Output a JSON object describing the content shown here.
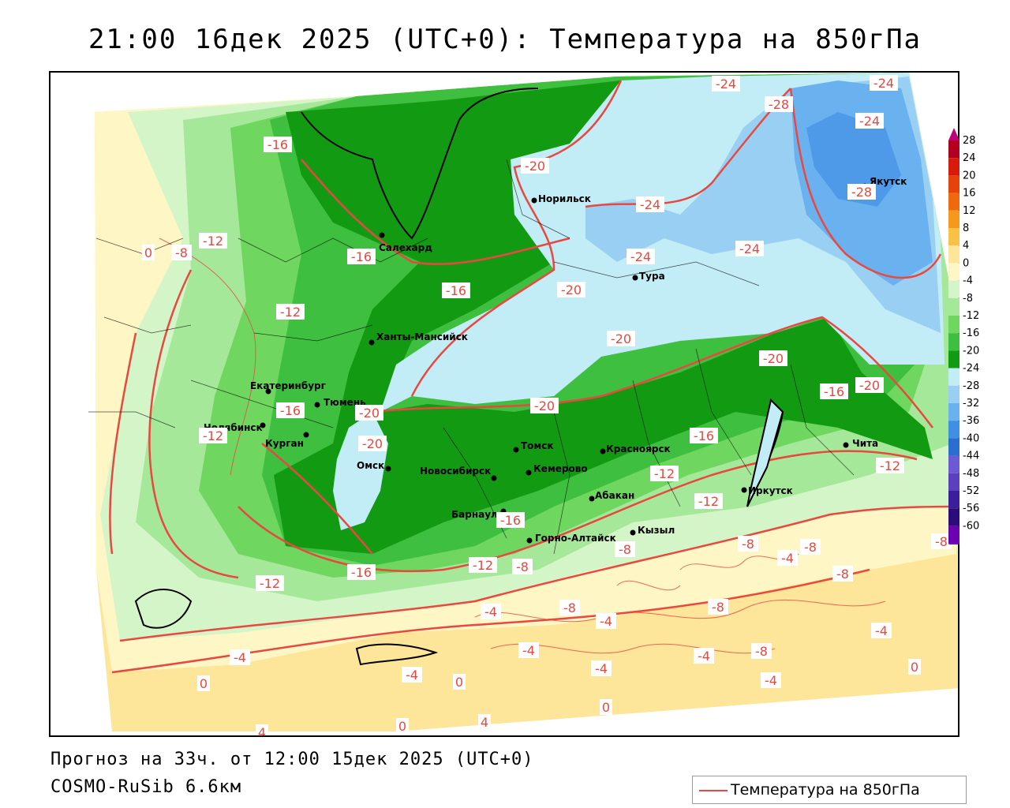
{
  "title": "21:00 16дек 2025 (UTC+0): Температура на 850гПа",
  "footer": {
    "forecast": "Прогноз на 33ч. от 12:00 15дек 2025 (UTC+0)",
    "model": "COSMO-RuSib 6.6км"
  },
  "legend": {
    "label": "Температура на 850гПа",
    "line_color": "#e8483f"
  },
  "scale": {
    "ticks": [
      "28",
      "24",
      "20",
      "16",
      "12",
      "8",
      "4",
      "0",
      "-4",
      "-8",
      "-12",
      "-16",
      "-20",
      "-24",
      "-28",
      "-32",
      "-36",
      "-40",
      "-44",
      "-48",
      "-52",
      "-56",
      "-60"
    ],
    "colors": [
      "#c0007a",
      "#b3001e",
      "#d61a0c",
      "#e8420c",
      "#ef6a0e",
      "#f5981c",
      "#f9c246",
      "#fde59a",
      "#fef6c5",
      "#d4f5c8",
      "#a6e89a",
      "#6fd65f",
      "#3fbf3f",
      "#139a13",
      "#c2ecf6",
      "#98cff3",
      "#6ab1ef",
      "#3f8fe4",
      "#2a6fd0",
      "#6d58d6",
      "#5a3fbf",
      "#3a1e9c",
      "#2b0c7a",
      "#6a00b2"
    ]
  },
  "cities": [
    {
      "name": "Салехард"
    },
    {
      "name": "Норильск"
    },
    {
      "name": "Тура"
    },
    {
      "name": "Якутск"
    },
    {
      "name": "Ханты-Мансийск"
    },
    {
      "name": "Екатеринбург"
    },
    {
      "name": "Тюмень"
    },
    {
      "name": "Челябинск"
    },
    {
      "name": "Курган"
    },
    {
      "name": "Омск"
    },
    {
      "name": "Новосибирск"
    },
    {
      "name": "Томск"
    },
    {
      "name": "Кемерово"
    },
    {
      "name": "Красноярск"
    },
    {
      "name": "Барнаул"
    },
    {
      "name": "Абакан"
    },
    {
      "name": "Горно-Алтайск"
    },
    {
      "name": "Кызыл"
    },
    {
      "name": "Иркутск"
    },
    {
      "name": "Чита"
    }
  ],
  "isotherm_labels": [
    "-24",
    "-28",
    "-24",
    "-24",
    "-28",
    "-20",
    "-24",
    "-24",
    "-24",
    "-16",
    "-12",
    "0",
    "-8",
    "-16",
    "-16",
    "-20",
    "-12",
    "-20",
    "-20",
    "-20",
    "-16",
    "-20",
    "-16",
    "-12",
    "-20",
    "-16",
    "-20",
    "-12",
    "-12",
    "-16",
    "-12",
    "-16",
    "-12",
    "-8",
    "-8",
    "-4",
    "-8",
    "-12",
    "-8",
    "-8",
    "-4",
    "-8",
    "-4",
    "-8",
    "-4",
    "-4",
    "-8",
    "-4",
    "-4",
    "-4",
    "-4",
    "-4",
    "0",
    "0",
    "0",
    "0",
    "4",
    "4",
    "0",
    "-8"
  ]
}
